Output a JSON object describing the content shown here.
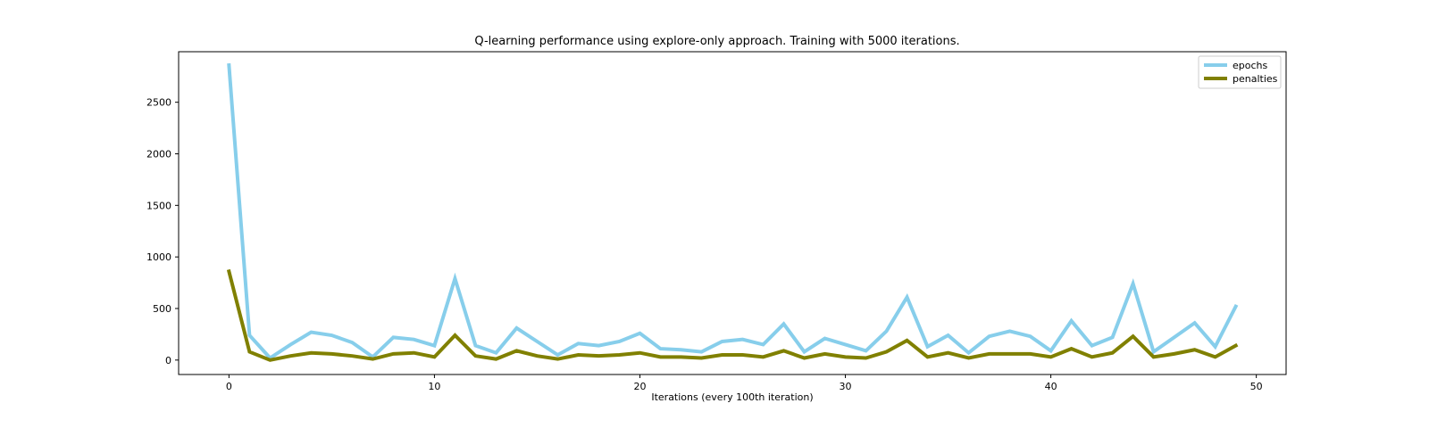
{
  "chart_data": {
    "type": "line",
    "title": "Q-learning performance using explore-only approach. Training with 5000 iterations.",
    "xlabel": "Iterations (every 100th iteration)",
    "ylabel": "",
    "xlim": [
      -2.45,
      51.45
    ],
    "ylim": [
      -140,
      2990
    ],
    "xticks": [
      0,
      10,
      20,
      30,
      40,
      50
    ],
    "yticks": [
      0,
      500,
      1000,
      1500,
      2000,
      2500
    ],
    "grid": false,
    "legend_position": "upper right",
    "x": [
      0,
      1,
      2,
      3,
      4,
      5,
      6,
      7,
      8,
      9,
      10,
      11,
      12,
      13,
      14,
      15,
      16,
      17,
      18,
      19,
      20,
      21,
      22,
      23,
      24,
      25,
      26,
      27,
      28,
      29,
      30,
      31,
      32,
      33,
      34,
      35,
      36,
      37,
      38,
      39,
      40,
      41,
      42,
      43,
      44,
      45,
      46,
      47,
      48,
      49
    ],
    "series": [
      {
        "name": "epochs",
        "color": "#87ceeb",
        "values": [
          2860,
          240,
          20,
          150,
          270,
          240,
          170,
          30,
          220,
          200,
          140,
          790,
          140,
          70,
          310,
          180,
          50,
          160,
          140,
          180,
          260,
          110,
          100,
          80,
          180,
          200,
          150,
          350,
          80,
          210,
          150,
          90,
          280,
          610,
          130,
          240,
          70,
          230,
          280,
          230,
          90,
          380,
          140,
          220,
          740,
          80,
          220,
          360,
          130,
          520
        ]
      },
      {
        "name": "penalties",
        "color": "#808000",
        "values": [
          860,
          80,
          0,
          40,
          70,
          60,
          40,
          10,
          60,
          70,
          30,
          240,
          40,
          10,
          90,
          40,
          10,
          50,
          40,
          50,
          70,
          30,
          30,
          20,
          50,
          50,
          30,
          90,
          20,
          60,
          30,
          20,
          80,
          190,
          30,
          70,
          20,
          60,
          60,
          60,
          30,
          110,
          30,
          70,
          230,
          30,
          60,
          100,
          30,
          140
        ]
      }
    ]
  }
}
